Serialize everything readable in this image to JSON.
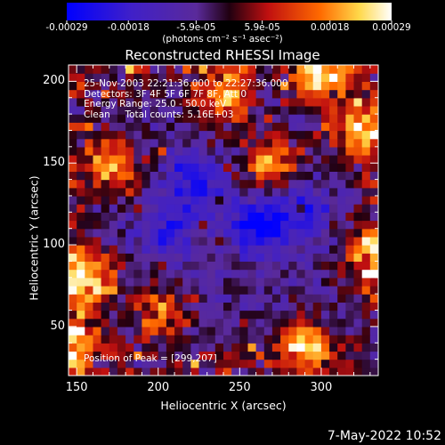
{
  "chart_data": {
    "type": "heatmap",
    "title": "Reconstructed RHESSI Image",
    "xlabel": "Heliocentric X (arcsec)",
    "ylabel": "Heliocentric Y (arcsec)",
    "xlim": [
      145,
      335
    ],
    "ylim": [
      20,
      210
    ],
    "xticks": [
      150,
      200,
      250,
      300
    ],
    "yticks": [
      50,
      100,
      150,
      200
    ],
    "colorbar": {
      "min": -0.00029,
      "max": 0.00029,
      "tick_values": [
        -0.00029,
        -0.00018,
        -5.9e-05,
        5.9e-05,
        0.00018,
        0.00029
      ],
      "tick_labels": [
        "-0.00029",
        "-0.00018",
        "-5.9e-05",
        "5.9e-05",
        "0.00018",
        "0.00029"
      ],
      "units_label": "(photons cm⁻² s⁻¹ asec⁻²)"
    },
    "annotations": [
      "25-Nov-2003 22:21:36.000 to 22:27:36.000",
      "Detectors: 3F 4F 5F 6F 7F 8F, Att 0",
      "Energy Range: 25.0 - 50.0 keV",
      "Clean     Total counts: 5.16E+03",
      "Position of Peak = [299,207]"
    ],
    "peak": [
      299,
      207
    ],
    "bright_regions": [
      {
        "x": 158,
        "y": 80,
        "level": 0.95
      },
      {
        "x": 172,
        "y": 150,
        "level": 0.9
      },
      {
        "x": 240,
        "y": 190,
        "level": 0.9
      },
      {
        "x": 290,
        "y": 40,
        "level": 0.95
      },
      {
        "x": 299,
        "y": 207,
        "level": 1.0
      },
      {
        "x": 322,
        "y": 170,
        "level": 0.95
      },
      {
        "x": 332,
        "y": 95,
        "level": 0.9
      },
      {
        "x": 150,
        "y": 40,
        "level": 0.8
      },
      {
        "x": 270,
        "y": 150,
        "level": 0.8
      },
      {
        "x": 200,
        "y": 60,
        "level": 0.75
      }
    ],
    "dim_regions": [
      {
        "x": 222,
        "y": 138,
        "level": -0.7
      },
      {
        "x": 262,
        "y": 112,
        "level": -0.8
      },
      {
        "x": 205,
        "y": 108,
        "level": -0.5
      },
      {
        "x": 290,
        "y": 120,
        "level": -0.45
      }
    ],
    "grid": false
  },
  "footer": {
    "timestamp": "7-May-2022 10:52"
  }
}
